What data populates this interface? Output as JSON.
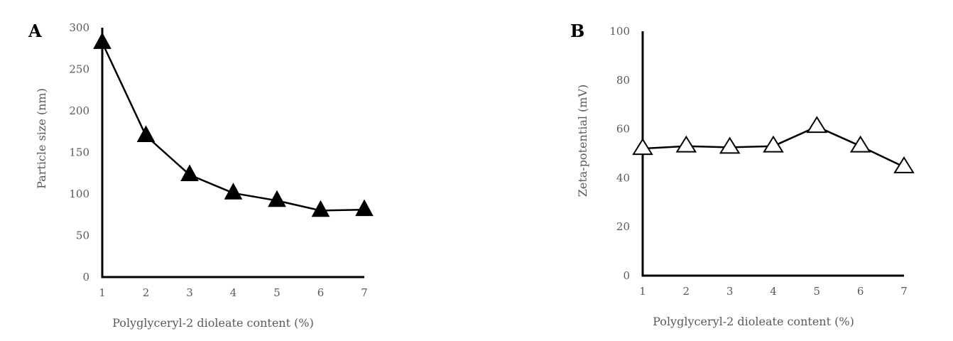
{
  "chart_data": [
    {
      "type": "line",
      "panel_label": "A",
      "xlabel": "Polyglyceryl-2 dioleate content (%)",
      "ylabel": "Particle size (nm)",
      "xlim": [
        1,
        7
      ],
      "ylim": [
        0,
        300
      ],
      "x_ticks": [
        "1",
        "2",
        "3",
        "4",
        "5",
        "6",
        "7"
      ],
      "y_ticks": [
        "0",
        "50",
        "100",
        "150",
        "200",
        "250",
        "300"
      ],
      "grid": false,
      "marker": "filled-triangle",
      "x": [
        1,
        2,
        3,
        4,
        5,
        6,
        7
      ],
      "series": [
        {
          "values": [
            282,
            170,
            123,
            101,
            92,
            80,
            81
          ]
        }
      ]
    },
    {
      "type": "line",
      "panel_label": "B",
      "xlabel": "Polyglyceryl-2 dioleate content (%)",
      "ylabel": "Zeta-potential (mV)",
      "xlim": [
        1,
        7
      ],
      "ylim": [
        0,
        100
      ],
      "x_ticks": [
        "1",
        "2",
        "3",
        "4",
        "5",
        "6",
        "7"
      ],
      "y_ticks": [
        "0",
        "20",
        "40",
        "60",
        "80",
        "100"
      ],
      "grid": false,
      "marker": "open-triangle",
      "x": [
        1,
        2,
        3,
        4,
        5,
        6,
        7
      ],
      "series": [
        {
          "values": [
            52,
            53,
            52.5,
            53,
            61,
            53,
            44.5
          ]
        }
      ]
    }
  ]
}
